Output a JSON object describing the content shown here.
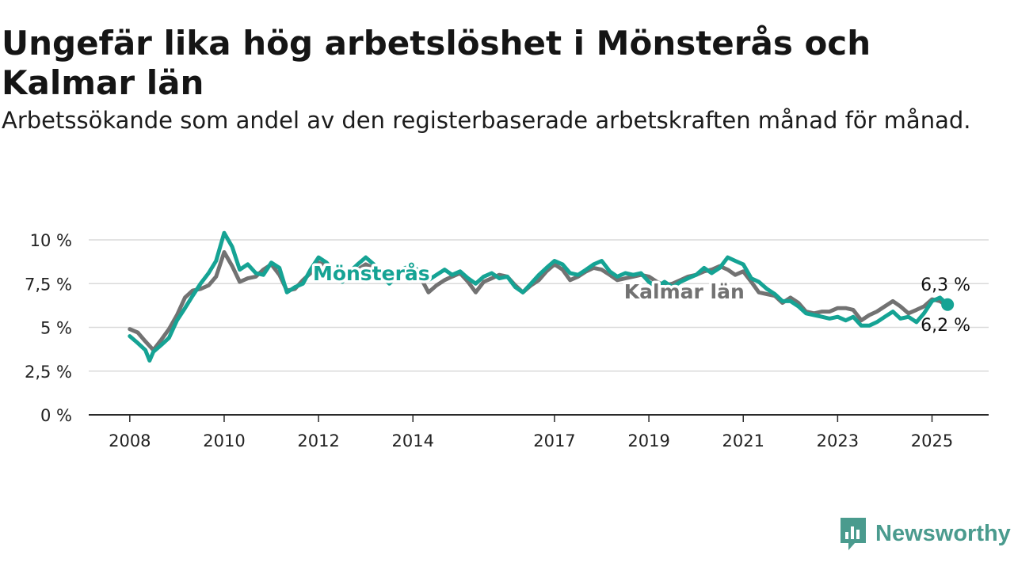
{
  "title": "Ungefär lika hög arbetslöshet i Mönsterås och Kalmar län",
  "subtitle": "Arbetssökande som andel av den registerbaserade arbetskraften månad för månad.",
  "brand": {
    "name": "Newsworthy",
    "color": "#4a9b8e"
  },
  "colors": {
    "monsteras": "#15a394",
    "kalmar": "#727272",
    "grid": "#dadada",
    "axis": "#2a2a2a"
  },
  "chart_data": {
    "type": "line",
    "title": "Ungefär lika hög arbetslöshet i Mönsterås och Kalmar län",
    "ylabel": "",
    "xlabel": "",
    "ylim": [
      0,
      10
    ],
    "yticks": [
      {
        "value": 0,
        "label": "0 %"
      },
      {
        "value": 2.5,
        "label": "2,5 %"
      },
      {
        "value": 5,
        "label": "5 %"
      },
      {
        "value": 7.5,
        "label": "7,5 %"
      },
      {
        "value": 10,
        "label": "10 %"
      }
    ],
    "xticks": [
      {
        "value": 2008.0,
        "label": "2008"
      },
      {
        "value": 2010.0,
        "label": "2010"
      },
      {
        "value": 2012.0,
        "label": "2012"
      },
      {
        "value": 2014.0,
        "label": "2014"
      },
      {
        "value": 2017.0,
        "label": "2017"
      },
      {
        "value": 2019.0,
        "label": "2019"
      },
      {
        "value": 2021.0,
        "label": "2021"
      },
      {
        "value": 2023.0,
        "label": "2023"
      },
      {
        "value": 2025.0,
        "label": "2025"
      }
    ],
    "xlim": [
      2007.13,
      2026.2
    ],
    "grid": true,
    "series": [
      {
        "name": "Kalmar län",
        "color": "#727272",
        "end_label": "6,2 %",
        "points": [
          [
            2008.0,
            4.9
          ],
          [
            2008.17,
            4.7
          ],
          [
            2008.33,
            4.2
          ],
          [
            2008.5,
            3.7
          ],
          [
            2008.67,
            4.3
          ],
          [
            2008.83,
            4.9
          ],
          [
            2009.0,
            5.7
          ],
          [
            2009.17,
            6.7
          ],
          [
            2009.33,
            7.1
          ],
          [
            2009.5,
            7.2
          ],
          [
            2009.67,
            7.4
          ],
          [
            2009.83,
            7.9
          ],
          [
            2010.0,
            9.3
          ],
          [
            2010.17,
            8.5
          ],
          [
            2010.33,
            7.6
          ],
          [
            2010.5,
            7.8
          ],
          [
            2010.67,
            7.9
          ],
          [
            2010.83,
            8.3
          ],
          [
            2011.0,
            8.6
          ],
          [
            2011.17,
            8.0
          ],
          [
            2011.33,
            7.1
          ],
          [
            2011.5,
            7.2
          ],
          [
            2011.67,
            7.7
          ],
          [
            2011.83,
            8.1
          ],
          [
            2012.0,
            8.7
          ],
          [
            2012.17,
            8.5
          ],
          [
            2012.33,
            8.1
          ],
          [
            2012.5,
            7.7
          ],
          [
            2012.67,
            7.9
          ],
          [
            2012.83,
            8.3
          ],
          [
            2013.0,
            8.6
          ],
          [
            2013.17,
            8.4
          ],
          [
            2013.33,
            8.2
          ],
          [
            2013.5,
            7.7
          ],
          [
            2013.67,
            7.8
          ],
          [
            2013.83,
            8.1
          ],
          [
            2014.0,
            8.4
          ],
          [
            2014.17,
            7.8
          ],
          [
            2014.33,
            7.0
          ],
          [
            2014.5,
            7.4
          ],
          [
            2014.67,
            7.7
          ],
          [
            2014.83,
            7.9
          ],
          [
            2015.0,
            8.1
          ],
          [
            2015.17,
            7.6
          ],
          [
            2015.33,
            7.0
          ],
          [
            2015.5,
            7.6
          ],
          [
            2015.67,
            7.8
          ],
          [
            2015.83,
            8.0
          ],
          [
            2016.0,
            7.9
          ],
          [
            2016.17,
            7.4
          ],
          [
            2016.33,
            7.0
          ],
          [
            2016.5,
            7.4
          ],
          [
            2016.67,
            7.7
          ],
          [
            2016.83,
            8.2
          ],
          [
            2017.0,
            8.6
          ],
          [
            2017.17,
            8.3
          ],
          [
            2017.33,
            7.7
          ],
          [
            2017.5,
            7.9
          ],
          [
            2017.67,
            8.2
          ],
          [
            2017.83,
            8.4
          ],
          [
            2018.0,
            8.3
          ],
          [
            2018.17,
            8.0
          ],
          [
            2018.33,
            7.7
          ],
          [
            2018.5,
            7.8
          ],
          [
            2018.67,
            7.9
          ],
          [
            2018.83,
            8.0
          ],
          [
            2019.0,
            7.9
          ],
          [
            2019.17,
            7.6
          ],
          [
            2019.33,
            7.4
          ],
          [
            2019.5,
            7.5
          ],
          [
            2019.67,
            7.7
          ],
          [
            2019.83,
            7.9
          ],
          [
            2020.0,
            8.0
          ],
          [
            2020.17,
            8.2
          ],
          [
            2020.33,
            8.3
          ],
          [
            2020.5,
            8.5
          ],
          [
            2020.67,
            8.3
          ],
          [
            2020.83,
            8.0
          ],
          [
            2021.0,
            8.2
          ],
          [
            2021.17,
            7.6
          ],
          [
            2021.33,
            7.0
          ],
          [
            2021.5,
            6.9
          ],
          [
            2021.67,
            6.8
          ],
          [
            2021.83,
            6.4
          ],
          [
            2022.0,
            6.7
          ],
          [
            2022.17,
            6.4
          ],
          [
            2022.33,
            5.9
          ],
          [
            2022.5,
            5.8
          ],
          [
            2022.67,
            5.9
          ],
          [
            2022.83,
            5.9
          ],
          [
            2023.0,
            6.1
          ],
          [
            2023.17,
            6.1
          ],
          [
            2023.33,
            6.0
          ],
          [
            2023.5,
            5.4
          ],
          [
            2023.67,
            5.7
          ],
          [
            2023.83,
            5.9
          ],
          [
            2024.0,
            6.2
          ],
          [
            2024.17,
            6.5
          ],
          [
            2024.33,
            6.2
          ],
          [
            2024.5,
            5.8
          ],
          [
            2024.67,
            6.0
          ],
          [
            2024.83,
            6.2
          ],
          [
            2025.0,
            6.6
          ],
          [
            2025.17,
            6.5
          ],
          [
            2025.33,
            6.2
          ]
        ]
      },
      {
        "name": "Mönsterås",
        "color": "#15a394",
        "end_label": "6,3 %",
        "points": [
          [
            2008.0,
            4.5
          ],
          [
            2008.17,
            4.1
          ],
          [
            2008.33,
            3.7
          ],
          [
            2008.42,
            3.1
          ],
          [
            2008.5,
            3.6
          ],
          [
            2008.67,
            4.0
          ],
          [
            2008.83,
            4.4
          ],
          [
            2009.0,
            5.4
          ],
          [
            2009.17,
            6.1
          ],
          [
            2009.33,
            6.8
          ],
          [
            2009.5,
            7.5
          ],
          [
            2009.67,
            8.1
          ],
          [
            2009.83,
            8.8
          ],
          [
            2010.0,
            10.4
          ],
          [
            2010.17,
            9.6
          ],
          [
            2010.33,
            8.3
          ],
          [
            2010.5,
            8.6
          ],
          [
            2010.67,
            8.1
          ],
          [
            2010.83,
            8.0
          ],
          [
            2011.0,
            8.7
          ],
          [
            2011.17,
            8.4
          ],
          [
            2011.33,
            7.0
          ],
          [
            2011.5,
            7.3
          ],
          [
            2011.67,
            7.5
          ],
          [
            2011.83,
            8.3
          ],
          [
            2012.0,
            9.0
          ],
          [
            2012.17,
            8.7
          ],
          [
            2012.33,
            8.2
          ],
          [
            2012.5,
            7.6
          ],
          [
            2012.67,
            8.2
          ],
          [
            2012.83,
            8.6
          ],
          [
            2013.0,
            9.0
          ],
          [
            2013.17,
            8.6
          ],
          [
            2013.33,
            8.0
          ],
          [
            2013.5,
            7.5
          ],
          [
            2013.67,
            8.0
          ],
          [
            2013.83,
            8.4
          ],
          [
            2014.0,
            8.5
          ],
          [
            2014.17,
            8.1
          ],
          [
            2014.33,
            7.7
          ],
          [
            2014.5,
            8.0
          ],
          [
            2014.67,
            8.3
          ],
          [
            2014.83,
            8.0
          ],
          [
            2015.0,
            8.2
          ],
          [
            2015.17,
            7.8
          ],
          [
            2015.33,
            7.5
          ],
          [
            2015.5,
            7.9
          ],
          [
            2015.67,
            8.1
          ],
          [
            2015.83,
            7.8
          ],
          [
            2016.0,
            7.9
          ],
          [
            2016.17,
            7.3
          ],
          [
            2016.33,
            7.0
          ],
          [
            2016.5,
            7.5
          ],
          [
            2016.67,
            8.0
          ],
          [
            2016.83,
            8.4
          ],
          [
            2017.0,
            8.8
          ],
          [
            2017.17,
            8.6
          ],
          [
            2017.33,
            8.1
          ],
          [
            2017.5,
            8.0
          ],
          [
            2017.67,
            8.3
          ],
          [
            2017.83,
            8.6
          ],
          [
            2018.0,
            8.8
          ],
          [
            2018.17,
            8.2
          ],
          [
            2018.33,
            7.9
          ],
          [
            2018.5,
            8.1
          ],
          [
            2018.67,
            8.0
          ],
          [
            2018.83,
            8.1
          ],
          [
            2019.0,
            7.6
          ],
          [
            2019.17,
            7.3
          ],
          [
            2019.33,
            7.6
          ],
          [
            2019.5,
            7.3
          ],
          [
            2019.67,
            7.6
          ],
          [
            2019.83,
            7.8
          ],
          [
            2020.0,
            8.0
          ],
          [
            2020.17,
            8.4
          ],
          [
            2020.33,
            8.1
          ],
          [
            2020.5,
            8.4
          ],
          [
            2020.67,
            9.0
          ],
          [
            2020.83,
            8.8
          ],
          [
            2021.0,
            8.6
          ],
          [
            2021.17,
            7.8
          ],
          [
            2021.33,
            7.6
          ],
          [
            2021.5,
            7.2
          ],
          [
            2021.67,
            6.9
          ],
          [
            2021.83,
            6.5
          ],
          [
            2022.0,
            6.5
          ],
          [
            2022.17,
            6.2
          ],
          [
            2022.33,
            5.8
          ],
          [
            2022.5,
            5.7
          ],
          [
            2022.67,
            5.6
          ],
          [
            2022.83,
            5.5
          ],
          [
            2023.0,
            5.6
          ],
          [
            2023.17,
            5.4
          ],
          [
            2023.33,
            5.6
          ],
          [
            2023.5,
            5.1
          ],
          [
            2023.67,
            5.1
          ],
          [
            2023.83,
            5.3
          ],
          [
            2024.0,
            5.6
          ],
          [
            2024.17,
            5.9
          ],
          [
            2024.33,
            5.5
          ],
          [
            2024.5,
            5.6
          ],
          [
            2024.67,
            5.3
          ],
          [
            2024.83,
            5.8
          ],
          [
            2025.0,
            6.5
          ],
          [
            2025.17,
            6.7
          ],
          [
            2025.33,
            6.3
          ]
        ]
      }
    ],
    "series_labels": [
      {
        "series": "Mönsterås",
        "text": "Mönsterås"
      },
      {
        "series": "Kalmar län",
        "text": "Kalmar län"
      }
    ]
  }
}
